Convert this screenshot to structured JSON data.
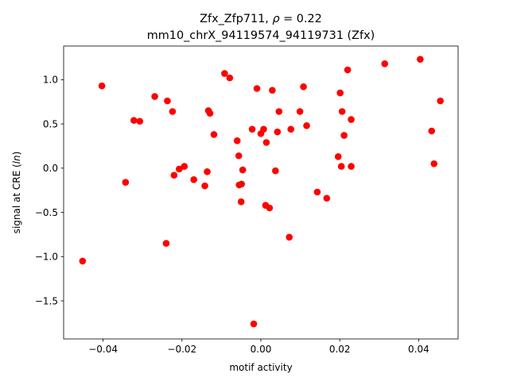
{
  "chart_data": {
    "type": "scatter",
    "title_line1_prefix": "Zfx_Zfp711, ",
    "title_line1_rho": "ρ",
    "title_line1_suffix": " = 0.22",
    "title_line2": "mm10_chrX_94119574_94119731 (Zfx)",
    "xlabel": "motif activity",
    "ylabel_prefix": "signal at CRE (",
    "ylabel_italic": "ln",
    "ylabel_suffix": ")",
    "xlim": [
      -0.05,
      0.05
    ],
    "ylim": [
      -1.93,
      1.38
    ],
    "grid": false,
    "legend": "none",
    "marker_color": "#ff0000",
    "x_ticks": [
      -0.04,
      -0.02,
      0.0,
      0.02,
      0.04
    ],
    "x_tick_labels": [
      "−0.04",
      "−0.02",
      "0.00",
      "0.02",
      "0.04"
    ],
    "y_ticks": [
      -1.5,
      -1.0,
      -0.5,
      0.0,
      0.5,
      1.0
    ],
    "y_tick_labels": [
      "−1.5",
      "−1.0",
      "−0.5",
      "0.0",
      "0.5",
      "1.0"
    ],
    "points": [
      {
        "x": -0.0452,
        "y": -1.05
      },
      {
        "x": -0.0403,
        "y": 0.93
      },
      {
        "x": -0.0343,
        "y": -0.16
      },
      {
        "x": -0.0322,
        "y": 0.54
      },
      {
        "x": -0.0307,
        "y": 0.53
      },
      {
        "x": -0.0269,
        "y": 0.81
      },
      {
        "x": -0.024,
        "y": -0.85
      },
      {
        "x": -0.0237,
        "y": 0.76
      },
      {
        "x": -0.0224,
        "y": 0.64
      },
      {
        "x": -0.022,
        "y": -0.08
      },
      {
        "x": -0.0207,
        "y": -0.01
      },
      {
        "x": -0.0194,
        "y": 0.02
      },
      {
        "x": -0.017,
        "y": -0.13
      },
      {
        "x": -0.0142,
        "y": -0.2
      },
      {
        "x": -0.0136,
        "y": -0.04
      },
      {
        "x": -0.0133,
        "y": 0.65
      },
      {
        "x": -0.0129,
        "y": 0.62
      },
      {
        "x": -0.0119,
        "y": 0.38
      },
      {
        "x": -0.0092,
        "y": 1.07
      },
      {
        "x": -0.0079,
        "y": 1.02
      },
      {
        "x": -0.006,
        "y": 0.31
      },
      {
        "x": -0.0056,
        "y": 0.14
      },
      {
        "x": -0.0055,
        "y": -0.19
      },
      {
        "x": -0.0049,
        "y": -0.18
      },
      {
        "x": -0.005,
        "y": -0.38
      },
      {
        "x": -0.0046,
        "y": -0.02
      },
      {
        "x": -0.0022,
        "y": 0.44
      },
      {
        "x": -0.0018,
        "y": -1.76
      },
      {
        "x": -0.001,
        "y": 0.9
      },
      {
        "x": 0.0,
        "y": 0.39
      },
      {
        "x": 0.0007,
        "y": 0.44
      },
      {
        "x": 0.0012,
        "y": -0.42
      },
      {
        "x": 0.0014,
        "y": 0.29
      },
      {
        "x": 0.0022,
        "y": -0.45
      },
      {
        "x": 0.0029,
        "y": 0.88
      },
      {
        "x": 0.0037,
        "y": -0.03
      },
      {
        "x": 0.0042,
        "y": 0.41
      },
      {
        "x": 0.0046,
        "y": 0.64
      },
      {
        "x": 0.0072,
        "y": -0.78
      },
      {
        "x": 0.0076,
        "y": 0.44
      },
      {
        "x": 0.0099,
        "y": 0.64
      },
      {
        "x": 0.0108,
        "y": 0.92
      },
      {
        "x": 0.0116,
        "y": 0.48
      },
      {
        "x": 0.0143,
        "y": -0.27
      },
      {
        "x": 0.0167,
        "y": -0.34
      },
      {
        "x": 0.0196,
        "y": 0.13
      },
      {
        "x": 0.0201,
        "y": 0.85
      },
      {
        "x": 0.0204,
        "y": 0.02
      },
      {
        "x": 0.0206,
        "y": 0.64
      },
      {
        "x": 0.0211,
        "y": 0.37
      },
      {
        "x": 0.022,
        "y": 1.11
      },
      {
        "x": 0.0229,
        "y": 0.02
      },
      {
        "x": 0.0229,
        "y": 0.55
      },
      {
        "x": 0.0314,
        "y": 1.18
      },
      {
        "x": 0.0404,
        "y": 1.23
      },
      {
        "x": 0.0433,
        "y": 0.42
      },
      {
        "x": 0.0439,
        "y": 0.05
      },
      {
        "x": 0.0455,
        "y": 0.76
      }
    ]
  }
}
